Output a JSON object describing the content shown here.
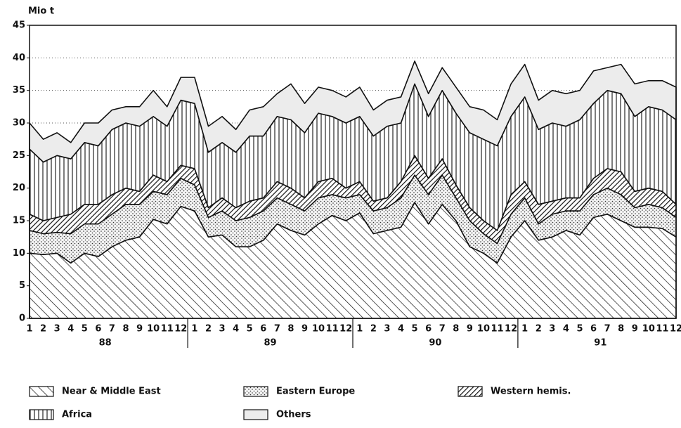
{
  "chart_data": {
    "type": "stacked-area",
    "y_label": "Mio t",
    "categories": [
      "1",
      "2",
      "3",
      "4",
      "5",
      "6",
      "7",
      "8",
      "9",
      "10",
      "11",
      "12",
      "1",
      "2",
      "3",
      "4",
      "5",
      "6",
      "7",
      "8",
      "9",
      "10",
      "11",
      "12",
      "1",
      "2",
      "3",
      "4",
      "5",
      "6",
      "7",
      "8",
      "9",
      "10",
      "11",
      "12",
      "1",
      "2",
      "3",
      "4",
      "5",
      "6",
      "7",
      "8",
      "9",
      "10",
      "11",
      "12"
    ],
    "years": [
      "88",
      "89",
      "90",
      "91"
    ],
    "ylim": [
      0,
      45
    ],
    "yticks": [
      0,
      5,
      10,
      15,
      20,
      25,
      30,
      35,
      40,
      45
    ],
    "grid": true,
    "series": [
      {
        "name": "Near & Middle East",
        "color": "#111111",
        "values": [
          10,
          9.8,
          10,
          8.5,
          10,
          9.5,
          11,
          12,
          12.5,
          15.2,
          14.5,
          17.2,
          16.5,
          12.5,
          12.8,
          11,
          11,
          12,
          14.5,
          13.5,
          12.8,
          14.5,
          15.8,
          15,
          16.2,
          13,
          13.5,
          14,
          17.8,
          14.5,
          17.5,
          15,
          11,
          10,
          8.5,
          12.5,
          15,
          12,
          12.5,
          13.5,
          12.8,
          15.5,
          16,
          15,
          14,
          14,
          13.8,
          12.5
        ]
      },
      {
        "name": "Eastern Europe",
        "color": "#111111",
        "values": [
          3.5,
          3.2,
          3.2,
          4.5,
          4.5,
          5,
          5,
          5.5,
          5,
          4.3,
          4.5,
          4.3,
          4,
          3,
          3.7,
          4,
          4.5,
          4.5,
          4,
          4,
          3.7,
          4,
          3.2,
          3.5,
          2.8,
          3.5,
          3.5,
          4.5,
          4.2,
          4.5,
          4.5,
          3.5,
          4,
          3,
          3,
          3.5,
          3.5,
          2.5,
          3.5,
          3,
          3.7,
          3.5,
          4,
          4,
          3,
          3.5,
          3.2,
          3
        ]
      },
      {
        "name": "Western hemis.",
        "color": "#111111",
        "values": [
          2.5,
          2,
          2.3,
          3,
          3,
          3,
          3,
          2.5,
          2,
          2.5,
          2,
          2,
          2.5,
          1.5,
          2,
          2,
          2.5,
          2,
          2.5,
          2.5,
          2,
          2.5,
          2.5,
          1.5,
          2,
          1.5,
          1.5,
          2.5,
          3,
          2.5,
          2.5,
          2,
          2,
          2,
          2,
          3,
          2.5,
          3,
          2,
          2,
          2,
          2.5,
          3,
          3.5,
          2.5,
          2.5,
          2.5,
          2
        ]
      },
      {
        "name": "Africa",
        "color": "#111111",
        "values": [
          10,
          9,
          9.5,
          8.5,
          9.5,
          9,
          10,
          10,
          10,
          9,
          8.5,
          10,
          10,
          8.5,
          8.5,
          8.5,
          10,
          9.5,
          10,
          10.5,
          10,
          10.5,
          9.5,
          10,
          10,
          10,
          11,
          9,
          11,
          9.5,
          10.5,
          11,
          11.5,
          12.5,
          13,
          12,
          13,
          11.5,
          12,
          11,
          12,
          11.5,
          12,
          12,
          11.5,
          12.5,
          12.5,
          13
        ]
      },
      {
        "name": "Others",
        "color": "#111111",
        "values": [
          4,
          3.5,
          3.5,
          2.5,
          3,
          3.5,
          3,
          2.5,
          3,
          4,
          3,
          3.5,
          4,
          4,
          4,
          3.5,
          4,
          4.5,
          3.5,
          5.5,
          4.5,
          4,
          4,
          4,
          4.5,
          4,
          4,
          4,
          3.5,
          3.5,
          3.5,
          4,
          4,
          4.5,
          4,
          5,
          5,
          4.5,
          5,
          5,
          4.5,
          5,
          3.5,
          4.5,
          5,
          4,
          4.5,
          5
        ]
      }
    ]
  }
}
